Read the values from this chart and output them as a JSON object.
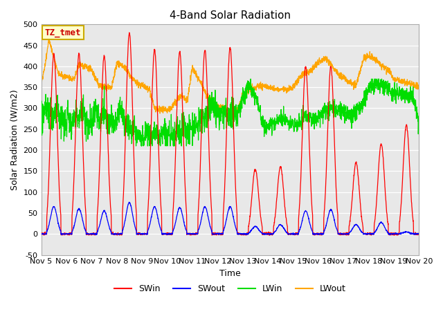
{
  "title": "4-Band Solar Radiation",
  "xlabel": "Time",
  "ylabel": "Solar Radiation (W/m2)",
  "ylim": [
    -50,
    500
  ],
  "xlim_days": [
    5,
    20
  ],
  "x_ticks": [
    5,
    6,
    7,
    8,
    9,
    10,
    11,
    12,
    13,
    14,
    15,
    16,
    17,
    18,
    19,
    20
  ],
  "x_tick_labels": [
    "Nov 5",
    "Nov 6",
    "Nov 7",
    "Nov 8",
    "Nov 9",
    "Nov 10",
    "Nov 11",
    "Nov 12",
    "Nov 13",
    "Nov 14",
    "Nov 15",
    "Nov 16",
    "Nov 17",
    "Nov 18",
    "Nov 19",
    "Nov 20"
  ],
  "yticks": [
    -50,
    0,
    50,
    100,
    150,
    200,
    250,
    300,
    350,
    400,
    450,
    500
  ],
  "colors": {
    "SWin": "#ff0000",
    "SWout": "#0000ff",
    "LWin": "#00dd00",
    "LWout": "#ffa500"
  },
  "bg_color": "#e8e8e8",
  "annotation_text": "TZ_tmet",
  "annotation_bg": "#ffffcc",
  "annotation_border": "#ccaa00",
  "annotation_text_color": "#cc0000",
  "grid_color": "#ffffff",
  "title_fontsize": 11,
  "axis_fontsize": 9,
  "tick_fontsize": 8,
  "linewidth": 0.9
}
